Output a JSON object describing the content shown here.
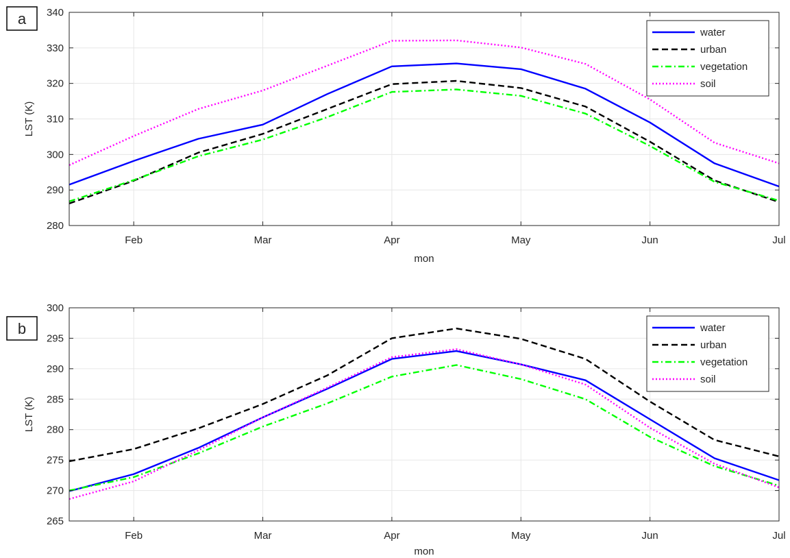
{
  "chart_data": [
    {
      "panel_label": "a",
      "type": "line",
      "x": [
        "Jan 16",
        "Feb",
        "Feb 15",
        "Mar",
        "Mar 16",
        "Apr",
        "Apr 16",
        "May",
        "May 16",
        "Jun",
        "Jun 16",
        "Jul"
      ],
      "xticks": [
        "Feb",
        "Mar",
        "Apr",
        "May",
        "Jun",
        "Jul"
      ],
      "xlabel": "mon",
      "ylabel": "LST (K)",
      "ylim": [
        280,
        340
      ],
      "yticks": [
        280,
        290,
        300,
        310,
        320,
        330,
        340
      ],
      "grid": true,
      "legend": "top-right",
      "series": [
        {
          "name": "water",
          "color": "#0000ff",
          "dash": "solid",
          "values": [
            291.5,
            298.2,
            304.4,
            308.4,
            317.0,
            324.8,
            325.6,
            324.0,
            318.5,
            309.0,
            297.5,
            291.0
          ]
        },
        {
          "name": "urban",
          "color": "#000000",
          "dash": "dashed",
          "values": [
            286.2,
            292.6,
            300.5,
            305.8,
            312.8,
            319.8,
            320.7,
            318.7,
            313.5,
            303.6,
            292.7,
            286.6
          ]
        },
        {
          "name": "vegetation",
          "color": "#00ff00",
          "dash": "dashdot",
          "values": [
            286.8,
            292.8,
            299.5,
            304.2,
            310.5,
            317.6,
            318.3,
            316.5,
            311.5,
            302.4,
            292.3,
            287.0
          ]
        },
        {
          "name": "soil",
          "color": "#ff00ff",
          "dash": "dotted",
          "values": [
            297.0,
            305.2,
            312.8,
            318.0,
            325.0,
            332.0,
            332.1,
            330.1,
            325.5,
            315.5,
            303.3,
            297.5
          ]
        }
      ]
    },
    {
      "panel_label": "b",
      "type": "line",
      "x": [
        "Jan 16",
        "Feb",
        "Feb 15",
        "Mar",
        "Mar 16",
        "Apr",
        "Apr 16",
        "May",
        "May 16",
        "Jun",
        "Jun 16",
        "Jul"
      ],
      "xticks": [
        "Feb",
        "Mar",
        "Apr",
        "May",
        "Jun",
        "Jul"
      ],
      "xlabel": "mon",
      "ylabel": "LST (K)",
      "ylim": [
        265,
        300
      ],
      "yticks": [
        265,
        270,
        275,
        280,
        285,
        290,
        295,
        300
      ],
      "grid": true,
      "legend": "top-right",
      "series": [
        {
          "name": "water",
          "color": "#0000ff",
          "dash": "solid",
          "values": [
            269.9,
            272.7,
            277.0,
            282.0,
            286.7,
            291.6,
            292.9,
            290.7,
            288.1,
            281.7,
            275.3,
            271.7
          ]
        },
        {
          "name": "urban",
          "color": "#000000",
          "dash": "dashed",
          "values": [
            274.8,
            276.8,
            280.2,
            284.2,
            288.9,
            295.0,
            296.6,
            294.9,
            291.6,
            284.6,
            278.3,
            275.6
          ]
        },
        {
          "name": "vegetation",
          "color": "#00ff00",
          "dash": "dashdot",
          "values": [
            270.0,
            272.2,
            276.1,
            280.5,
            284.3,
            288.7,
            290.6,
            288.3,
            285.0,
            278.8,
            274.0,
            270.8
          ]
        },
        {
          "name": "soil",
          "color": "#ff00ff",
          "dash": "dotted",
          "values": [
            268.6,
            271.5,
            276.6,
            282.0,
            286.9,
            291.9,
            293.2,
            290.7,
            287.4,
            280.3,
            274.4,
            270.5
          ]
        }
      ]
    }
  ]
}
